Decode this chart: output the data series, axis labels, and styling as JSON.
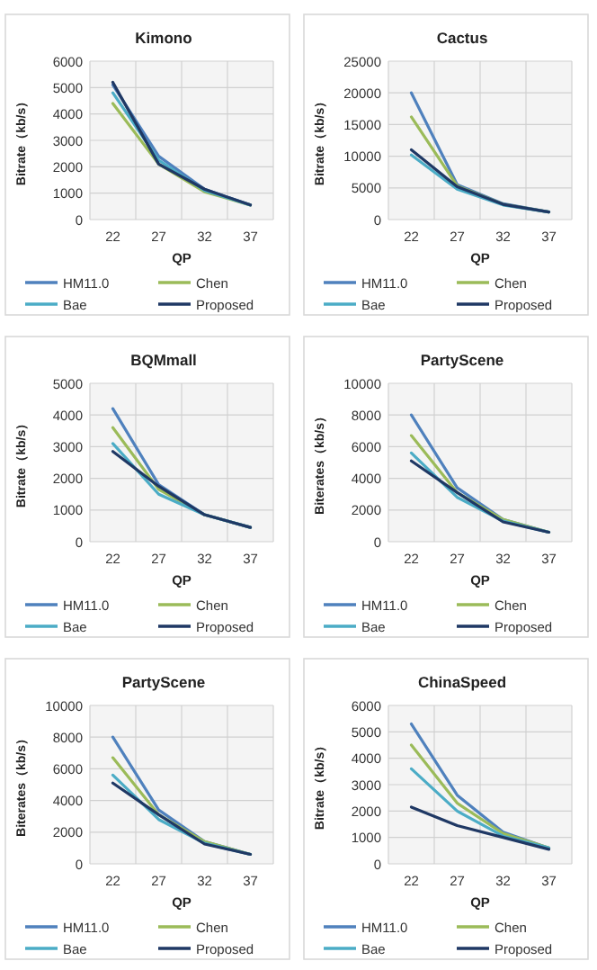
{
  "chart_data": [
    {
      "type": "line",
      "title": "Kimono",
      "xlabel": "QP",
      "ylabel": "Bitrate（kb/s）",
      "categories": [
        "22",
        "27",
        "32",
        "37"
      ],
      "ylim": [
        0,
        6000
      ],
      "yticks": [
        0,
        1000,
        2000,
        3000,
        4000,
        5000,
        6000
      ],
      "grid": true,
      "legend": "bottom",
      "series": [
        {
          "name": "HM11.0",
          "color": "#4f81bd",
          "values": [
            5100,
            2400,
            1150,
            550
          ]
        },
        {
          "name": "Chen",
          "color": "#9bbb59",
          "values": [
            4400,
            2100,
            1050,
            550
          ]
        },
        {
          "name": "Bae",
          "color": "#4bacc6",
          "values": [
            4800,
            2250,
            1100,
            550
          ]
        },
        {
          "name": "Proposed",
          "color": "#1f3864",
          "values": [
            5200,
            2100,
            1150,
            550
          ]
        }
      ]
    },
    {
      "type": "line",
      "title": "Cactus",
      "xlabel": "QP",
      "ylabel": "Bitrate（kb/s）",
      "categories": [
        "22",
        "27",
        "32",
        "37"
      ],
      "ylim": [
        0,
        25000
      ],
      "yticks": [
        0,
        5000,
        10000,
        15000,
        20000,
        25000
      ],
      "grid": true,
      "legend": "bottom",
      "series": [
        {
          "name": "HM11.0",
          "color": "#4f81bd",
          "values": [
            20000,
            5500,
            2500,
            1200
          ]
        },
        {
          "name": "Chen",
          "color": "#9bbb59",
          "values": [
            16200,
            5300,
            2400,
            1200
          ]
        },
        {
          "name": "Bae",
          "color": "#4bacc6",
          "values": [
            10200,
            4800,
            2300,
            1200
          ]
        },
        {
          "name": "Proposed",
          "color": "#1f3864",
          "values": [
            11000,
            5200,
            2400,
            1200
          ]
        }
      ]
    },
    {
      "type": "line",
      "title": "BQMmall",
      "xlabel": "QP",
      "ylabel": "Bitrate（kb/s）",
      "categories": [
        "22",
        "27",
        "32",
        "37"
      ],
      "ylim": [
        0,
        5000
      ],
      "yticks": [
        0,
        1000,
        2000,
        3000,
        4000,
        5000
      ],
      "grid": true,
      "legend": "bottom",
      "series": [
        {
          "name": "HM11.0",
          "color": "#4f81bd",
          "values": [
            4200,
            1800,
            850,
            450
          ]
        },
        {
          "name": "Chen",
          "color": "#9bbb59",
          "values": [
            3600,
            1650,
            850,
            450
          ]
        },
        {
          "name": "Bae",
          "color": "#4bacc6",
          "values": [
            3100,
            1500,
            850,
            450
          ]
        },
        {
          "name": "Proposed",
          "color": "#1f3864",
          "values": [
            2850,
            1750,
            850,
            450
          ]
        }
      ]
    },
    {
      "type": "line",
      "title": "PartyScene",
      "xlabel": "QP",
      "ylabel": "Biterates（kb/s）",
      "categories": [
        "22",
        "27",
        "32",
        "37"
      ],
      "ylim": [
        0,
        10000
      ],
      "yticks": [
        0,
        2000,
        4000,
        6000,
        8000,
        10000
      ],
      "grid": true,
      "legend": "bottom",
      "series": [
        {
          "name": "HM11.0",
          "color": "#4f81bd",
          "values": [
            8000,
            3400,
            1400,
            600
          ]
        },
        {
          "name": "Chen",
          "color": "#9bbb59",
          "values": [
            6700,
            3100,
            1400,
            600
          ]
        },
        {
          "name": "Bae",
          "color": "#4bacc6",
          "values": [
            5600,
            2800,
            1300,
            600
          ]
        },
        {
          "name": "Proposed",
          "color": "#1f3864",
          "values": [
            5100,
            3100,
            1250,
            600
          ]
        }
      ]
    },
    {
      "type": "line",
      "title": "PartyScene",
      "xlabel": "QP",
      "ylabel": "Biterates（kb/s）",
      "categories": [
        "22",
        "27",
        "32",
        "37"
      ],
      "ylim": [
        0,
        10000
      ],
      "yticks": [
        0,
        2000,
        4000,
        6000,
        8000,
        10000
      ],
      "grid": true,
      "legend": "bottom",
      "series": [
        {
          "name": "HM11.0",
          "color": "#4f81bd",
          "values": [
            8000,
            3400,
            1400,
            600
          ]
        },
        {
          "name": "Chen",
          "color": "#9bbb59",
          "values": [
            6700,
            3100,
            1400,
            600
          ]
        },
        {
          "name": "Bae",
          "color": "#4bacc6",
          "values": [
            5600,
            2800,
            1300,
            600
          ]
        },
        {
          "name": "Proposed",
          "color": "#1f3864",
          "values": [
            5100,
            3100,
            1250,
            600
          ]
        }
      ]
    },
    {
      "type": "line",
      "title": "ChinaSpeed",
      "xlabel": "QP",
      "ylabel": "Bitrate（kb/s）",
      "categories": [
        "22",
        "27",
        "32",
        "37"
      ],
      "ylim": [
        0,
        6000
      ],
      "yticks": [
        0,
        1000,
        2000,
        3000,
        4000,
        5000,
        6000
      ],
      "grid": true,
      "legend": "bottom",
      "series": [
        {
          "name": "HM11.0",
          "color": "#4f81bd",
          "values": [
            5300,
            2600,
            1200,
            600
          ]
        },
        {
          "name": "Chen",
          "color": "#9bbb59",
          "values": [
            4500,
            2300,
            1150,
            600
          ]
        },
        {
          "name": "Bae",
          "color": "#4bacc6",
          "values": [
            3600,
            2000,
            1050,
            600
          ]
        },
        {
          "name": "Proposed",
          "color": "#1f3864",
          "values": [
            2150,
            1450,
            1000,
            550
          ]
        }
      ]
    }
  ]
}
